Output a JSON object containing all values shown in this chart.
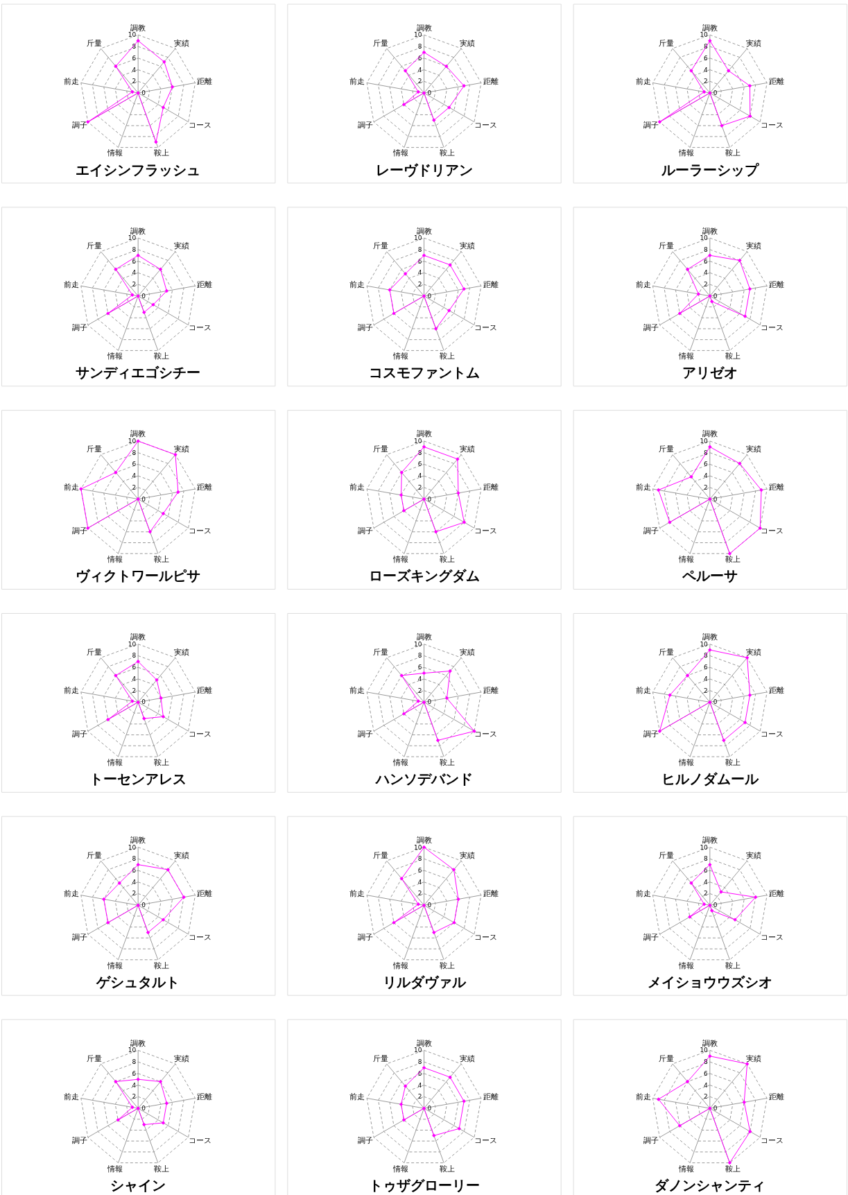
{
  "chart_data": [
    {
      "type": "radar",
      "title": "エイシンフラッシュ",
      "categories": [
        "調教",
        "実績",
        "距離",
        "コース",
        "鞍上",
        "情報",
        "調子",
        "前走",
        "斤量"
      ],
      "series": [
        {
          "color": "#ff00ff",
          "values": [
            9,
            7,
            6,
            5,
            9,
            0,
            10,
            1,
            6
          ]
        }
      ],
      "ylim": [
        0,
        10
      ],
      "yticks": [
        0,
        2,
        4,
        6,
        8,
        10
      ],
      "grid": true,
      "marker": "diamond"
    },
    {
      "type": "radar",
      "title": "レーヴドリアン",
      "categories": [
        "調教",
        "実績",
        "距離",
        "コース",
        "鞍上",
        "情報",
        "調子",
        "前走",
        "斤量"
      ],
      "series": [
        {
          "color": "#ff00ff",
          "values": [
            7,
            6,
            7,
            5,
            5,
            0,
            4,
            1,
            5
          ]
        }
      ],
      "ylim": [
        0,
        10
      ],
      "yticks": [
        0,
        2,
        4,
        6,
        8,
        10
      ],
      "grid": true,
      "marker": "diamond"
    },
    {
      "type": "radar",
      "title": "ルーラーシップ",
      "categories": [
        "調教",
        "実績",
        "距離",
        "コース",
        "鞍上",
        "情報",
        "調子",
        "前走",
        "斤量"
      ],
      "series": [
        {
          "color": "#ff00ff",
          "values": [
            9,
            5,
            7,
            8,
            6,
            0,
            10,
            1,
            5
          ]
        }
      ],
      "ylim": [
        0,
        10
      ],
      "yticks": [
        0,
        2,
        4,
        6,
        8,
        10
      ],
      "grid": true,
      "marker": "diamond"
    },
    {
      "type": "radar",
      "title": "サンディエゴシチー",
      "categories": [
        "調教",
        "実績",
        "距離",
        "コース",
        "鞍上",
        "情報",
        "調子",
        "前走",
        "斤量"
      ],
      "series": [
        {
          "color": "#ff00ff",
          "values": [
            7,
            6,
            5,
            3,
            3,
            0,
            6,
            1,
            6
          ]
        }
      ],
      "ylim": [
        0,
        10
      ],
      "yticks": [
        0,
        2,
        4,
        6,
        8,
        10
      ],
      "grid": true,
      "marker": "diamond"
    },
    {
      "type": "radar",
      "title": "コスモファントム",
      "categories": [
        "調教",
        "実績",
        "距離",
        "コース",
        "鞍上",
        "情報",
        "調子",
        "前走",
        "斤量"
      ],
      "series": [
        {
          "color": "#ff00ff",
          "values": [
            7,
            7,
            7,
            5,
            6,
            0,
            6,
            6,
            5
          ]
        }
      ],
      "ylim": [
        0,
        10
      ],
      "yticks": [
        0,
        2,
        4,
        6,
        8,
        10
      ],
      "grid": true,
      "marker": "diamond"
    },
    {
      "type": "radar",
      "title": "アリゼオ",
      "categories": [
        "調教",
        "実績",
        "距離",
        "コース",
        "鞍上",
        "情報",
        "調子",
        "前走",
        "斤量"
      ],
      "series": [
        {
          "color": "#ff00ff",
          "values": [
            7,
            8,
            7,
            7,
            1,
            0,
            6,
            2,
            6
          ]
        }
      ],
      "ylim": [
        0,
        10
      ],
      "yticks": [
        0,
        2,
        4,
        6,
        8,
        10
      ],
      "grid": true,
      "marker": "diamond"
    },
    {
      "type": "radar",
      "title": "ヴィクトワールピサ",
      "categories": [
        "調教",
        "実績",
        "距離",
        "コース",
        "鞍上",
        "情報",
        "調子",
        "前走",
        "斤量"
      ],
      "series": [
        {
          "color": "#ff00ff",
          "values": [
            10,
            10,
            7,
            5,
            6,
            0,
            10,
            10,
            6
          ]
        }
      ],
      "ylim": [
        0,
        10
      ],
      "yticks": [
        0,
        2,
        4,
        6,
        8,
        10
      ],
      "grid": true,
      "marker": "diamond"
    },
    {
      "type": "radar",
      "title": "ローズキングダム",
      "categories": [
        "調教",
        "実績",
        "距離",
        "コース",
        "鞍上",
        "情報",
        "調子",
        "前走",
        "斤量"
      ],
      "series": [
        {
          "color": "#ff00ff",
          "values": [
            9,
            9,
            6,
            8,
            6,
            0,
            4,
            4,
            6
          ]
        }
      ],
      "ylim": [
        0,
        10
      ],
      "yticks": [
        0,
        2,
        4,
        6,
        8,
        10
      ],
      "grid": true,
      "marker": "diamond"
    },
    {
      "type": "radar",
      "title": "ペルーサ",
      "categories": [
        "調教",
        "実績",
        "距離",
        "コース",
        "鞍上",
        "情報",
        "調子",
        "前走",
        "斤量"
      ],
      "series": [
        {
          "color": "#ff00ff",
          "values": [
            9,
            8,
            9,
            10,
            10,
            0,
            8,
            9,
            5
          ]
        }
      ],
      "ylim": [
        0,
        10
      ],
      "yticks": [
        0,
        2,
        4,
        6,
        8,
        10
      ],
      "grid": true,
      "marker": "diamond"
    },
    {
      "type": "radar",
      "title": "トーセンアレス",
      "categories": [
        "調教",
        "実績",
        "距離",
        "コース",
        "鞍上",
        "情報",
        "調子",
        "前走",
        "斤量"
      ],
      "series": [
        {
          "color": "#ff00ff",
          "values": [
            7,
            5,
            4,
            5,
            3,
            0,
            6,
            1,
            6
          ]
        }
      ],
      "ylim": [
        0,
        10
      ],
      "yticks": [
        0,
        2,
        4,
        6,
        8,
        10
      ],
      "grid": true,
      "marker": "diamond"
    },
    {
      "type": "radar",
      "title": "ハンソデバンド",
      "categories": [
        "調教",
        "実績",
        "距離",
        "コース",
        "鞍上",
        "情報",
        "調子",
        "前走",
        "斤量"
      ],
      "series": [
        {
          "color": "#ff00ff",
          "values": [
            5,
            7,
            4,
            10,
            7,
            0,
            4,
            1,
            6
          ]
        }
      ],
      "ylim": [
        0,
        10
      ],
      "yticks": [
        0,
        2,
        4,
        6,
        8,
        10
      ],
      "grid": true,
      "marker": "diamond"
    },
    {
      "type": "radar",
      "title": "ヒルノダムール",
      "categories": [
        "調教",
        "実績",
        "距離",
        "コース",
        "鞍上",
        "情報",
        "調子",
        "前走",
        "斤量"
      ],
      "series": [
        {
          "color": "#ff00ff",
          "values": [
            9,
            10,
            7,
            7,
            7,
            0,
            10,
            7,
            6
          ]
        }
      ],
      "ylim": [
        0,
        10
      ],
      "yticks": [
        0,
        2,
        4,
        6,
        8,
        10
      ],
      "grid": true,
      "marker": "diamond"
    },
    {
      "type": "radar",
      "title": "ゲシュタルト",
      "categories": [
        "調教",
        "実績",
        "距離",
        "コース",
        "鞍上",
        "情報",
        "調子",
        "前走",
        "斤量"
      ],
      "series": [
        {
          "color": "#ff00ff",
          "values": [
            7,
            8,
            8,
            5,
            5,
            0,
            6,
            6,
            5
          ]
        }
      ],
      "ylim": [
        0,
        10
      ],
      "yticks": [
        0,
        2,
        4,
        6,
        8,
        10
      ],
      "grid": true,
      "marker": "diamond"
    },
    {
      "type": "radar",
      "title": "リルダヴァル",
      "categories": [
        "調教",
        "実績",
        "距離",
        "コース",
        "鞍上",
        "情報",
        "調子",
        "前走",
        "斤量"
      ],
      "series": [
        {
          "color": "#ff00ff",
          "values": [
            10,
            8,
            6,
            6,
            5,
            0,
            6,
            1,
            6
          ]
        }
      ],
      "ylim": [
        0,
        10
      ],
      "yticks": [
        0,
        2,
        4,
        6,
        8,
        10
      ],
      "grid": true,
      "marker": "diamond"
    },
    {
      "type": "radar",
      "title": "メイショウウズシオ",
      "categories": [
        "調教",
        "実績",
        "距離",
        "コース",
        "鞍上",
        "情報",
        "調子",
        "前走",
        "斤量"
      ],
      "series": [
        {
          "color": "#ff00ff",
          "values": [
            7,
            3,
            8,
            5,
            1,
            0,
            4,
            1,
            5
          ]
        }
      ],
      "ylim": [
        0,
        10
      ],
      "yticks": [
        0,
        2,
        4,
        6,
        8,
        10
      ],
      "grid": true,
      "marker": "diamond"
    },
    {
      "type": "radar",
      "title": "シャイン",
      "categories": [
        "調教",
        "実績",
        "距離",
        "コース",
        "鞍上",
        "情報",
        "調子",
        "前走",
        "斤量"
      ],
      "series": [
        {
          "color": "#ff00ff",
          "values": [
            5,
            6,
            5,
            5,
            3,
            0,
            4,
            1,
            6
          ]
        }
      ],
      "ylim": [
        0,
        10
      ],
      "yticks": [
        0,
        2,
        4,
        6,
        8,
        10
      ],
      "grid": true,
      "marker": "diamond"
    },
    {
      "type": "radar",
      "title": "トゥザグローリー",
      "categories": [
        "調教",
        "実績",
        "距離",
        "コース",
        "鞍上",
        "情報",
        "調子",
        "前走",
        "斤量"
      ],
      "series": [
        {
          "color": "#ff00ff",
          "values": [
            7,
            7,
            7,
            7,
            5,
            0,
            4,
            4,
            5
          ]
        }
      ],
      "ylim": [
        0,
        10
      ],
      "yticks": [
        0,
        2,
        4,
        6,
        8,
        10
      ],
      "grid": true,
      "marker": "diamond"
    },
    {
      "type": "radar",
      "title": "ダノンシャンティ",
      "categories": [
        "調教",
        "実績",
        "距離",
        "コース",
        "鞍上",
        "情報",
        "調子",
        "前走",
        "斤量"
      ],
      "series": [
        {
          "color": "#ff00ff",
          "values": [
            9,
            10,
            6,
            8,
            10,
            0,
            6,
            9,
            6
          ]
        }
      ],
      "ylim": [
        0,
        10
      ],
      "yticks": [
        0,
        2,
        4,
        6,
        8,
        10
      ],
      "grid": true,
      "marker": "diamond"
    }
  ]
}
